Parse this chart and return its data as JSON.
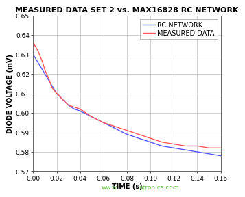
{
  "title": "MEASURED DATA SET 2 vs. MAX16828 RC NETWORK",
  "xlabel": "TIME (s)",
  "ylabel": "DIODE VOLTAGE (mV)",
  "xlim": [
    0,
    0.16
  ],
  "ylim": [
    0.57,
    0.65
  ],
  "xticks": [
    0.0,
    0.02,
    0.04,
    0.06,
    0.08,
    0.1,
    0.12,
    0.14,
    0.16
  ],
  "yticks": [
    0.57,
    0.58,
    0.59,
    0.6,
    0.61,
    0.62,
    0.63,
    0.64,
    0.65
  ],
  "rc_color": "#5555ff",
  "measured_color": "#ff5555",
  "legend_labels": [
    "RC NETWORK",
    "MEASURED DATA"
  ],
  "watermark": "wntronics.com",
  "watermark_prefix": "ww",
  "watermark_color": "#55bb33",
  "background_color": "#ffffff",
  "grid_color": "#c8c8c8",
  "title_fontsize": 8.0,
  "axis_label_fontsize": 7.0,
  "tick_fontsize": 6.5,
  "legend_fontsize": 7.0,
  "rc_x": [
    0.0,
    0.002,
    0.004,
    0.006,
    0.008,
    0.01,
    0.013,
    0.016,
    0.02,
    0.025,
    0.03,
    0.035,
    0.04,
    0.05,
    0.06,
    0.07,
    0.08,
    0.09,
    0.1,
    0.11,
    0.12,
    0.13,
    0.14,
    0.15,
    0.16
  ],
  "rc_y": [
    0.63,
    0.628,
    0.626,
    0.624,
    0.622,
    0.62,
    0.617,
    0.614,
    0.61,
    0.607,
    0.604,
    0.602,
    0.601,
    0.598,
    0.595,
    0.592,
    0.589,
    0.587,
    0.585,
    0.583,
    0.582,
    0.581,
    0.58,
    0.579,
    0.578
  ],
  "meas_x": [
    0.0,
    0.002,
    0.004,
    0.006,
    0.008,
    0.01,
    0.013,
    0.016,
    0.02,
    0.022,
    0.025,
    0.03,
    0.035,
    0.04,
    0.05,
    0.06,
    0.07,
    0.08,
    0.09,
    0.1,
    0.11,
    0.12,
    0.13,
    0.14,
    0.15,
    0.16
  ],
  "meas_y": [
    0.636,
    0.634,
    0.632,
    0.629,
    0.626,
    0.622,
    0.618,
    0.613,
    0.61,
    0.609,
    0.607,
    0.604,
    0.603,
    0.602,
    0.598,
    0.595,
    0.593,
    0.591,
    0.589,
    0.587,
    0.585,
    0.584,
    0.583,
    0.583,
    0.582,
    0.582
  ]
}
